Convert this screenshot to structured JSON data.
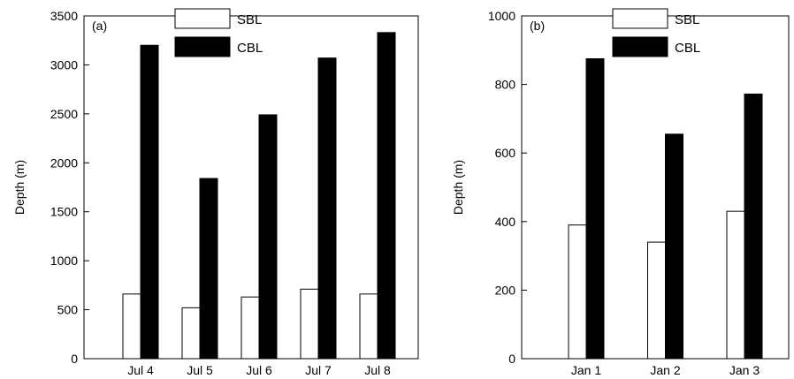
{
  "chart_data": [
    {
      "type": "bar",
      "panel_label": "(a)",
      "ylabel": "Depth (m)",
      "xlabel": "",
      "ylim": [
        0,
        3500
      ],
      "yticks": [
        0,
        500,
        1000,
        1500,
        2000,
        2500,
        3000,
        3500
      ],
      "categories": [
        "Jul 4",
        "Jul 5",
        "Jul 6",
        "Jul 7",
        "Jul 8"
      ],
      "series": [
        {
          "name": "SBL",
          "values": [
            660,
            520,
            630,
            710,
            660
          ],
          "color": "#ffffff"
        },
        {
          "name": "CBL",
          "values": [
            3200,
            1840,
            2490,
            3070,
            3330
          ],
          "color": "#000000"
        }
      ],
      "legend_position": "top"
    },
    {
      "type": "bar",
      "panel_label": "(b)",
      "ylabel": "Depth (m)",
      "xlabel": "",
      "ylim": [
        0,
        1000
      ],
      "yticks": [
        0,
        200,
        400,
        600,
        800,
        1000
      ],
      "categories": [
        "Jan 1",
        "Jan 2",
        "Jan 3"
      ],
      "series": [
        {
          "name": "SBL",
          "values": [
            390,
            340,
            430
          ],
          "color": "#ffffff"
        },
        {
          "name": "CBL",
          "values": [
            875,
            655,
            772
          ],
          "color": "#000000"
        }
      ],
      "legend_position": "top"
    }
  ]
}
